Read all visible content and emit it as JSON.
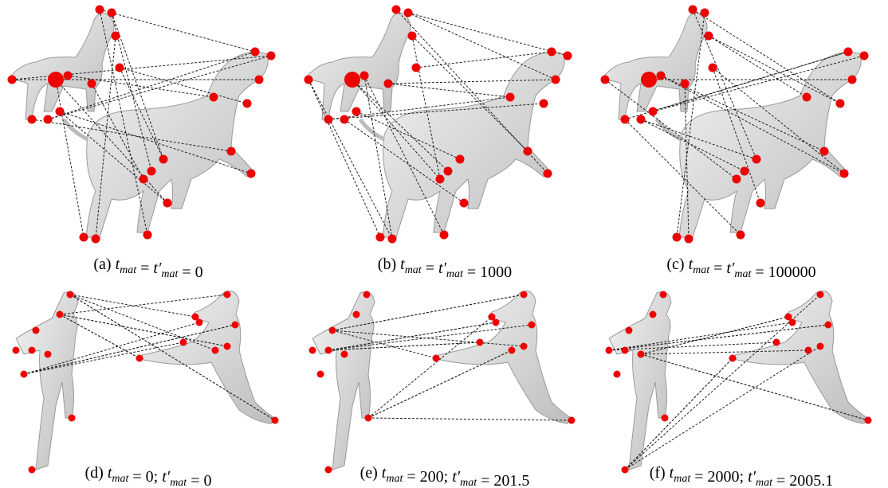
{
  "captions": [
    [
      {
        "text": "(a)"
      },
      {
        "v": "t",
        "sub": "mat"
      },
      {
        "text": "="
      },
      {
        "v": "t′",
        "sub": "mat"
      },
      {
        "text": "= 0"
      }
    ],
    [
      {
        "text": "(b)"
      },
      {
        "v": "t",
        "sub": "mat"
      },
      {
        "text": "="
      },
      {
        "v": "t′",
        "sub": "mat"
      },
      {
        "text": "= 1000"
      }
    ],
    [
      {
        "text": "(c)"
      },
      {
        "v": "t",
        "sub": "mat"
      },
      {
        "text": "="
      },
      {
        "v": "t′",
        "sub": "mat"
      },
      {
        "text": "= 100000"
      }
    ],
    [
      {
        "text": "(d)"
      },
      {
        "v": "t",
        "sub": "mat"
      },
      {
        "text": "= 0;"
      },
      {
        "v": "t′",
        "sub": "mat"
      },
      {
        "text": "= 0"
      }
    ],
    [
      {
        "text": "(e)"
      },
      {
        "v": "t",
        "sub": "mat"
      },
      {
        "text": "= 200;"
      },
      {
        "v": "t′",
        "sub": "mat"
      },
      {
        "text": "= 201.5"
      }
    ],
    [
      {
        "text": "(f)"
      },
      {
        "v": "t",
        "sub": "mat"
      },
      {
        "text": "= 2000;"
      },
      {
        "v": "t′",
        "sub": "mat"
      },
      {
        "text": "= 2005.1"
      }
    ]
  ]
}
